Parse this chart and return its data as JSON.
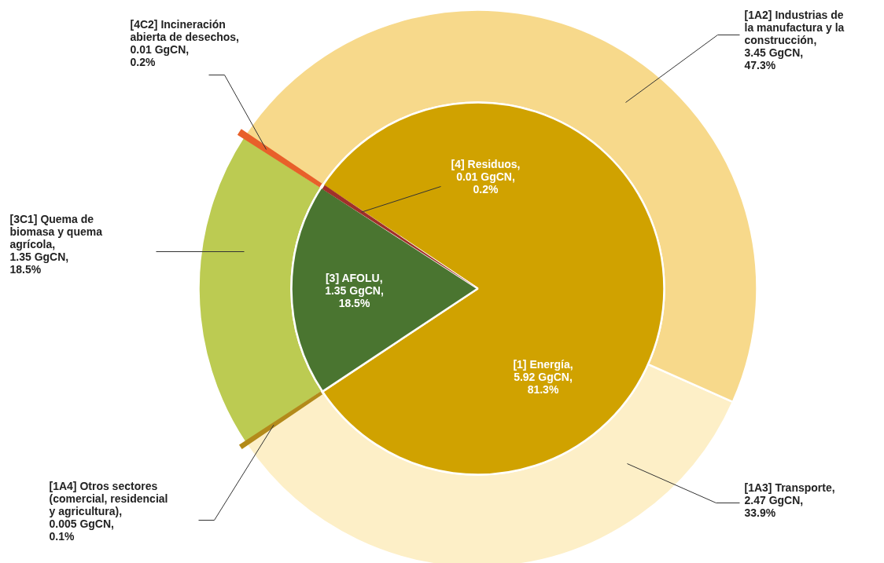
{
  "chart_data": {
    "type": "pie",
    "categories": [
      "[1] Energía",
      "[4] Residuos",
      "[3] AFOLU",
      "[1A4] Otros sectores (comercial, residencial y agricultura)",
      "[1A3] Transporte",
      "[1A2] Industrias de la manufactura y la construcción",
      "[4C2] Incineración abierta de desechos",
      "[3C1] Quema de biomasa y quema agrícola"
    ],
    "colors": [
      "#d0a200",
      "#a0302a",
      "#4a7530",
      "#b38a1a",
      "#fdefc7",
      "#f7d98b",
      "#e8602a",
      "#bccb52"
    ],
    "series": [
      {
        "values": [
          81.3,
          0.2,
          18.5,
          null,
          null,
          null,
          null,
          null
        ]
      },
      {
        "values": [
          null,
          null,
          null,
          0.1,
          33.9,
          47.3,
          0.2,
          18.5
        ]
      }
    ],
    "value_labels": [
      ",\n5.92 GgCN,\n81.3%",
      ",\n0.01 GgCN,\n0.2%",
      ",\n1.35 GgCN,\n18.5%",
      ",\n0.005 GgCN,\n0.1%",
      ",\n2.47 GgCN,\n33.9%",
      ",\n3.45 GgCN,\n47.3%",
      ",\n0.01 GgCN,\n0.2%",
      ",\n1.35 GgCN,\n18.5%"
    ]
  }
}
